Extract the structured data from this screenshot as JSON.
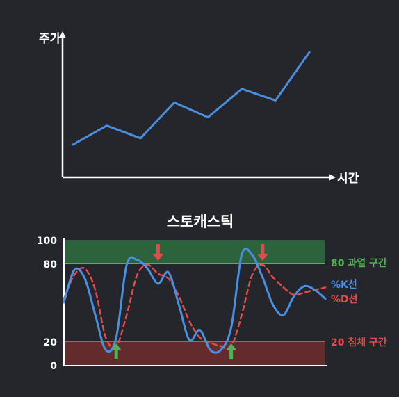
{
  "colors": {
    "background": "#24262b",
    "axis": "#ffffff",
    "price_line": "#4a90e2",
    "k_line": "#4a90e2",
    "d_line": "#e14b4b",
    "overbought_fill": "#2f6a3e",
    "overbought_line": "#4fb356",
    "oversold_fill": "#6b2c2c",
    "oversold_line": "#e14b4b",
    "up_arrow": "#4fb356",
    "down_arrow": "#e14b4b"
  },
  "chart_data": [
    {
      "type": "line",
      "title": "",
      "xlabel": "시간",
      "ylabel": "주가",
      "series": [
        {
          "values": [
            12,
            30,
            18,
            52,
            38,
            65,
            54,
            100
          ]
        }
      ],
      "x": [
        0,
        1,
        2,
        3,
        4,
        5,
        6,
        7
      ],
      "ylim": [
        0,
        100
      ]
    },
    {
      "type": "line",
      "title": "스토캐스틱",
      "yticks": [
        0,
        20,
        80,
        100
      ],
      "ylim": [
        0,
        100
      ],
      "x": [
        0,
        3,
        6,
        9,
        12,
        15,
        18,
        21,
        24,
        27,
        30,
        33,
        36,
        39,
        42,
        45,
        48,
        51,
        54,
        57,
        60,
        63,
        66,
        69,
        72,
        75
      ],
      "series": [
        {
          "name": "%K선",
          "values": [
            50,
            76,
            69,
            40,
            12,
            22,
            80,
            84,
            77,
            65,
            74,
            48,
            20,
            28,
            12,
            12,
            30,
            88,
            88,
            70,
            48,
            40,
            55,
            63,
            60,
            53
          ]
        },
        {
          "name": "%D선",
          "values": [
            53,
            72,
            77,
            60,
            22,
            15,
            40,
            72,
            80,
            73,
            69,
            55,
            35,
            22,
            18,
            15,
            15,
            40,
            72,
            80,
            70,
            62,
            56,
            58,
            60,
            62
          ]
        }
      ],
      "zones": [
        {
          "label": "80 과열 구간",
          "from": 80,
          "to": 100
        },
        {
          "label": "20 침체 구간",
          "from": 0,
          "to": 20
        }
      ],
      "signals": [
        {
          "type": "buy",
          "x": 15,
          "arrow": "up"
        },
        {
          "type": "sell",
          "x": 27,
          "arrow": "down"
        },
        {
          "type": "buy",
          "x": 48,
          "arrow": "up"
        },
        {
          "type": "sell",
          "x": 57,
          "arrow": "down"
        }
      ]
    }
  ],
  "labels": {
    "price_axis": "주가",
    "time_axis": "시간",
    "stoch_title": "스토캐스틱",
    "overbought": "80 과열 구간",
    "oversold": "20 침체 구간",
    "k_legend": "%K선",
    "d_legend": "%D선",
    "ytick_100": "100",
    "ytick_80": "80",
    "ytick_20": "20",
    "ytick_0": "0"
  }
}
